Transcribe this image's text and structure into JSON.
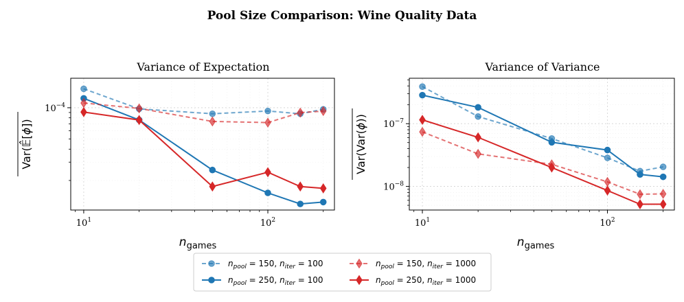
{
  "figure": {
    "suptitle": "Pool Size Comparison: Wine Quality Data"
  },
  "colors": {
    "blue": "#1f77b4",
    "red": "#d62728"
  },
  "chart_data": [
    {
      "type": "line",
      "title": "Variance of Expectation",
      "xlabel": "n_games",
      "ylabel": "Var(E[phi]) (overlined)",
      "xscale": "log",
      "yscale": "log",
      "xlim": [
        8.5,
        230
      ],
      "ylim": [
        1.04e-05,
        0.000192
      ],
      "xticks": [
        {
          "value": 10,
          "label": "10^1"
        },
        {
          "value": 100,
          "label": "10^2"
        }
      ],
      "yticks": [
        {
          "value": 0.0001,
          "label": "10^-4"
        }
      ],
      "grid": true,
      "x": [
        10,
        20,
        50,
        100,
        150,
        200
      ],
      "series": [
        {
          "name": "n_pool = 150, n_iter = 100",
          "color": "#1f77b4",
          "dash": true,
          "marker": "circle",
          "alpha": 0.65,
          "values": [
            0.000152,
            9.75e-05,
            8.75e-05,
            9.3e-05,
            8.75e-05,
            9.65e-05
          ]
        },
        {
          "name": "n_pool = 250, n_iter = 100",
          "color": "#1f77b4",
          "dash": false,
          "marker": "circle",
          "alpha": 1,
          "values": [
            0.000123,
            7.63e-05,
            2.52e-05,
            1.52e-05,
            1.19e-05,
            1.24e-05
          ]
        },
        {
          "name": "n_pool = 150, n_iter = 1000",
          "color": "#d62728",
          "dash": true,
          "marker": "diamond",
          "alpha": 0.65,
          "values": [
            0.000111,
            9.85e-05,
            7.38e-05,
            7.2e-05,
            8.98e-05,
            9.28e-05
          ]
        },
        {
          "name": "n_pool = 250, n_iter = 1000",
          "color": "#d62728",
          "dash": false,
          "marker": "diamond",
          "alpha": 1,
          "values": [
            9.08e-05,
            7.62e-05,
            1.75e-05,
            2.4e-05,
            1.75e-05,
            1.68e-05
          ]
        }
      ]
    },
    {
      "type": "line",
      "title": "Variance of Variance",
      "xlabel": "n_games",
      "ylabel": "Var(Var(phi)) (overlined)",
      "xscale": "log",
      "yscale": "log",
      "xlim": [
        8.5,
        230
      ],
      "ylim": [
        4.2e-09,
        5.3e-07
      ],
      "xticks": [
        {
          "value": 10,
          "label": "10^1"
        },
        {
          "value": 100,
          "label": "10^2"
        }
      ],
      "yticks": [
        {
          "value": 1e-07,
          "label": "10^-7"
        },
        {
          "value": 1e-08,
          "label": "10^-8"
        }
      ],
      "grid": true,
      "x": [
        10,
        20,
        50,
        100,
        150,
        200
      ],
      "series": [
        {
          "name": "n_pool = 150, n_iter = 100",
          "color": "#1f77b4",
          "dash": true,
          "marker": "circle",
          "alpha": 0.65,
          "values": [
            3.9e-07,
            1.3e-07,
            5.8e-08,
            2.85e-08,
            1.75e-08,
            2.05e-08
          ]
        },
        {
          "name": "n_pool = 250, n_iter = 100",
          "color": "#1f77b4",
          "dash": false,
          "marker": "circle",
          "alpha": 1,
          "values": [
            2.85e-07,
            1.82e-07,
            5.05e-08,
            3.8e-08,
            1.55e-08,
            1.42e-08
          ]
        },
        {
          "name": "n_pool = 150, n_iter = 1000",
          "color": "#d62728",
          "dash": true,
          "marker": "diamond",
          "alpha": 0.65,
          "values": [
            7.4e-08,
            3.3e-08,
            2.25e-08,
            1.18e-08,
            7.5e-09,
            7.6e-09
          ]
        },
        {
          "name": "n_pool = 250, n_iter = 1000",
          "color": "#d62728",
          "dash": false,
          "marker": "diamond",
          "alpha": 1,
          "values": [
            1.15e-07,
            6.05e-08,
            2e-08,
            8.6e-09,
            5.2e-09,
            5.2e-09
          ]
        }
      ]
    }
  ],
  "legend": {
    "placement": "bottom-center",
    "entries": [
      {
        "pool": "pool",
        "pool_val": "150",
        "iter": "iter",
        "iter_val": "100"
      },
      {
        "pool": "pool",
        "pool_val": "250",
        "iter": "iter",
        "iter_val": "100"
      },
      {
        "pool": "pool",
        "pool_val": "150",
        "iter": "iter",
        "iter_val": "1000"
      },
      {
        "pool": "pool",
        "pool_val": "250",
        "iter": "iter",
        "iter_val": "1000"
      }
    ]
  }
}
